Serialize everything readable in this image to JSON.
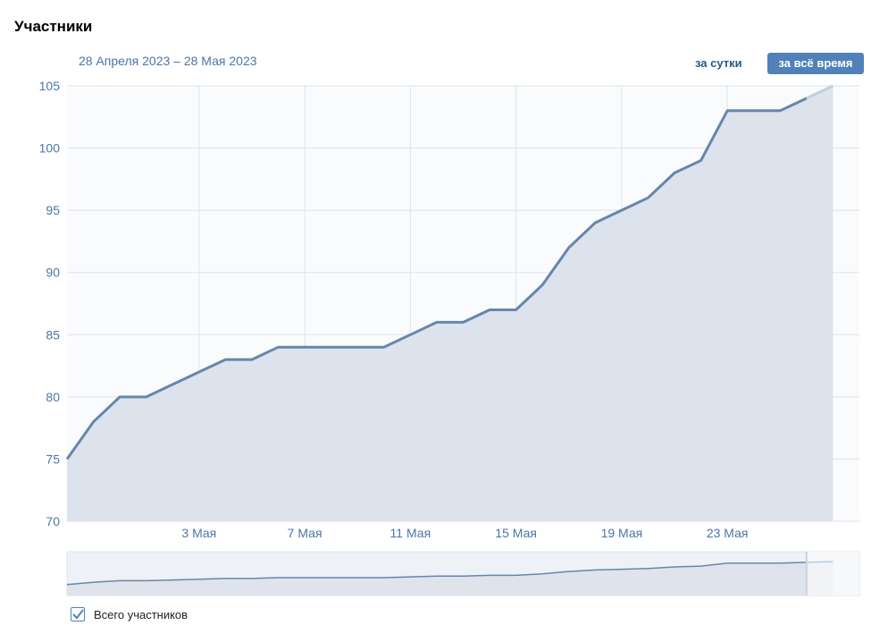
{
  "page": {
    "title": "Участники"
  },
  "controls": {
    "date_range": "28 Апреля 2023 – 28 Мая 2023",
    "day_label": "за сутки",
    "all_time_label": "за всё время"
  },
  "legend": {
    "label": "Всего участников",
    "checked": true
  },
  "colors": {
    "line": "#6686ad",
    "area": "#dde3ec",
    "grid": "#dfe4ea",
    "tick": "#4a76a8",
    "accent": "#5181b8"
  },
  "chart_data": {
    "type": "area",
    "title": "Участники",
    "xlabel": "",
    "ylabel": "",
    "x_start": "2023-04-28",
    "x_end": "2023-05-28",
    "ylim": [
      70,
      105
    ],
    "y_ticks": [
      70,
      75,
      80,
      85,
      90,
      95,
      100,
      105
    ],
    "x_ticks": [
      {
        "date": "2023-05-03",
        "label": "3 Мая"
      },
      {
        "date": "2023-05-07",
        "label": "7 Мая"
      },
      {
        "date": "2023-05-11",
        "label": "11 Мая"
      },
      {
        "date": "2023-05-15",
        "label": "15 Мая"
      },
      {
        "date": "2023-05-19",
        "label": "19 Мая"
      },
      {
        "date": "2023-05-23",
        "label": "23 Мая"
      }
    ],
    "grid": true,
    "series": [
      {
        "values": [
          {
            "x": "2023-04-28",
            "y": 75
          },
          {
            "x": "2023-04-29",
            "y": 78
          },
          {
            "x": "2023-04-30",
            "y": 80
          },
          {
            "x": "2023-05-01",
            "y": 80
          },
          {
            "x": "2023-05-02",
            "y": 81
          },
          {
            "x": "2023-05-03",
            "y": 82
          },
          {
            "x": "2023-05-04",
            "y": 83
          },
          {
            "x": "2023-05-05",
            "y": 83
          },
          {
            "x": "2023-05-06",
            "y": 84
          },
          {
            "x": "2023-05-07",
            "y": 84
          },
          {
            "x": "2023-05-08",
            "y": 84
          },
          {
            "x": "2023-05-09",
            "y": 84
          },
          {
            "x": "2023-05-10",
            "y": 84
          },
          {
            "x": "2023-05-11",
            "y": 85
          },
          {
            "x": "2023-05-12",
            "y": 86
          },
          {
            "x": "2023-05-13",
            "y": 86
          },
          {
            "x": "2023-05-14",
            "y": 87
          },
          {
            "x": "2023-05-15",
            "y": 87
          },
          {
            "x": "2023-05-16",
            "y": 89
          },
          {
            "x": "2023-05-17",
            "y": 92
          },
          {
            "x": "2023-05-18",
            "y": 94
          },
          {
            "x": "2023-05-19",
            "y": 95
          },
          {
            "x": "2023-05-20",
            "y": 96
          },
          {
            "x": "2023-05-21",
            "y": 98
          },
          {
            "x": "2023-05-22",
            "y": 99
          },
          {
            "x": "2023-05-23",
            "y": 103
          },
          {
            "x": "2023-05-24",
            "y": 103
          },
          {
            "x": "2023-05-25",
            "y": 103
          },
          {
            "x": "2023-05-26",
            "y": 104
          },
          {
            "x": "2023-05-27",
            "y": 105
          }
        ]
      }
    ]
  }
}
